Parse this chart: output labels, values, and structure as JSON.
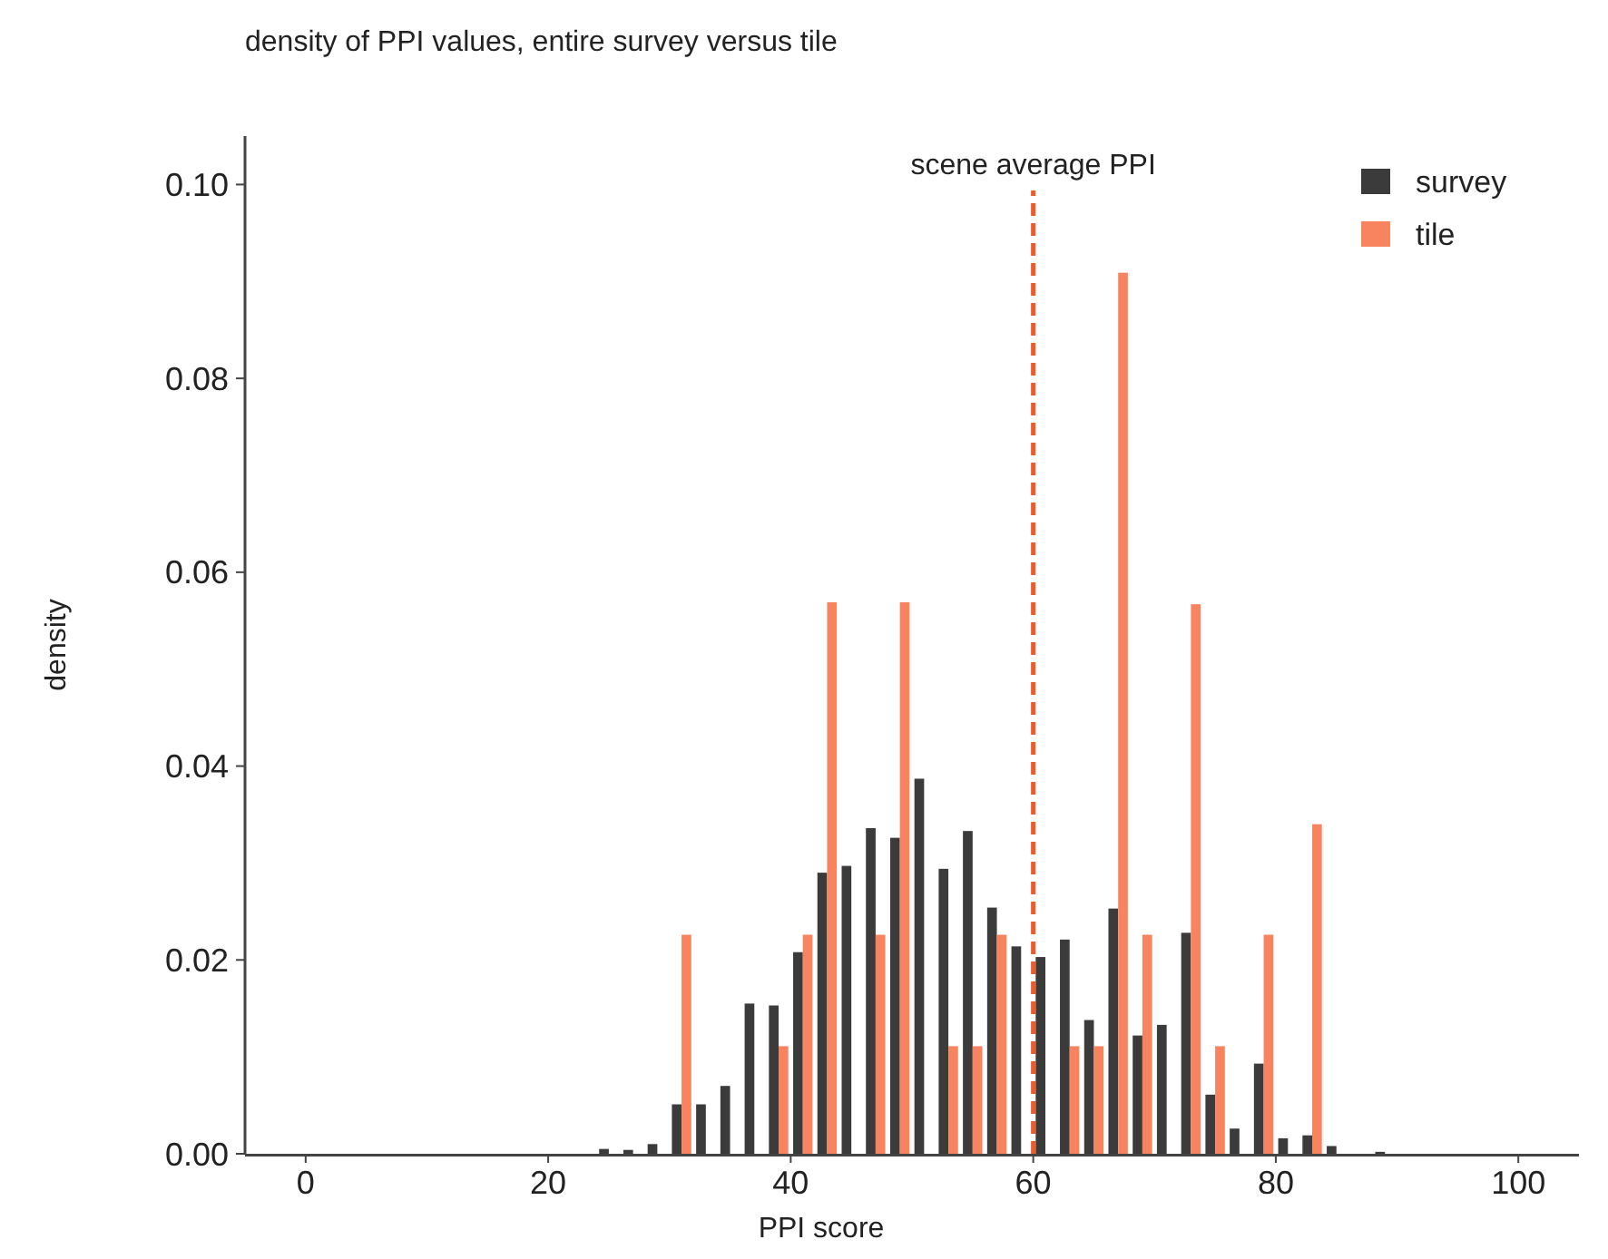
{
  "chart_data": {
    "type": "histogram",
    "title": "density of PPI values, entire survey versus tile",
    "xlabel": "PPI score",
    "ylabel": "density",
    "bins": [
      24,
      26,
      28,
      30,
      32,
      34,
      36,
      38,
      40,
      42,
      44,
      46,
      48,
      50,
      52,
      54,
      56,
      58,
      60,
      62,
      64,
      66,
      68,
      70,
      72,
      74,
      76,
      78,
      80,
      82,
      84,
      86,
      88,
      90
    ],
    "series": [
      {
        "name": "survey",
        "color": "#3b3b3b",
        "values": [
          0.0005,
          0.0004,
          0.001,
          0.0051,
          0.0051,
          0.007,
          0.0155,
          0.0153,
          0.0208,
          0.029,
          0.0297,
          0.0336,
          0.0326,
          0.0387,
          0.0294,
          0.0333,
          0.0254,
          0.0214,
          0.0203,
          0.0221,
          0.0138,
          0.0253,
          0.0122,
          0.0133,
          0.0228,
          0.0061,
          0.0026,
          0.0093,
          0.0016,
          0.0019,
          0.0008,
          0,
          0.0002
        ]
      },
      {
        "name": "tile",
        "color": "#f7845f",
        "values": [
          0,
          0,
          0,
          0.0226,
          0,
          0,
          0,
          0.0111,
          0.0226,
          0.0569,
          0,
          0.0226,
          0.0569,
          0,
          0.0111,
          0.0111,
          0.0226,
          0,
          0,
          0.0111,
          0.0111,
          0.0909,
          0.0226,
          0,
          0.0567,
          0.0111,
          0,
          0.0226,
          0,
          0.034,
          0,
          0,
          0
        ]
      }
    ],
    "xlim": [
      -5,
      105
    ],
    "xticks": [
      0,
      20,
      40,
      60,
      80,
      100
    ],
    "ylim": [
      0,
      0.105
    ],
    "yticks": [
      {
        "value": 0,
        "label": "0.00"
      },
      {
        "value": 0.02,
        "label": "0.02"
      },
      {
        "value": 0.04,
        "label": "0.04"
      },
      {
        "value": 0.06,
        "label": "0.06"
      },
      {
        "value": 0.08,
        "label": "0.08"
      },
      {
        "value": 0.1,
        "label": "0.10"
      }
    ],
    "ref_lines": [
      {
        "axis": "x",
        "value": 60,
        "label": "scene average PPI",
        "color": "#f05a28",
        "line_style": "dashed"
      }
    ],
    "legend": "top right",
    "grid": false
  }
}
